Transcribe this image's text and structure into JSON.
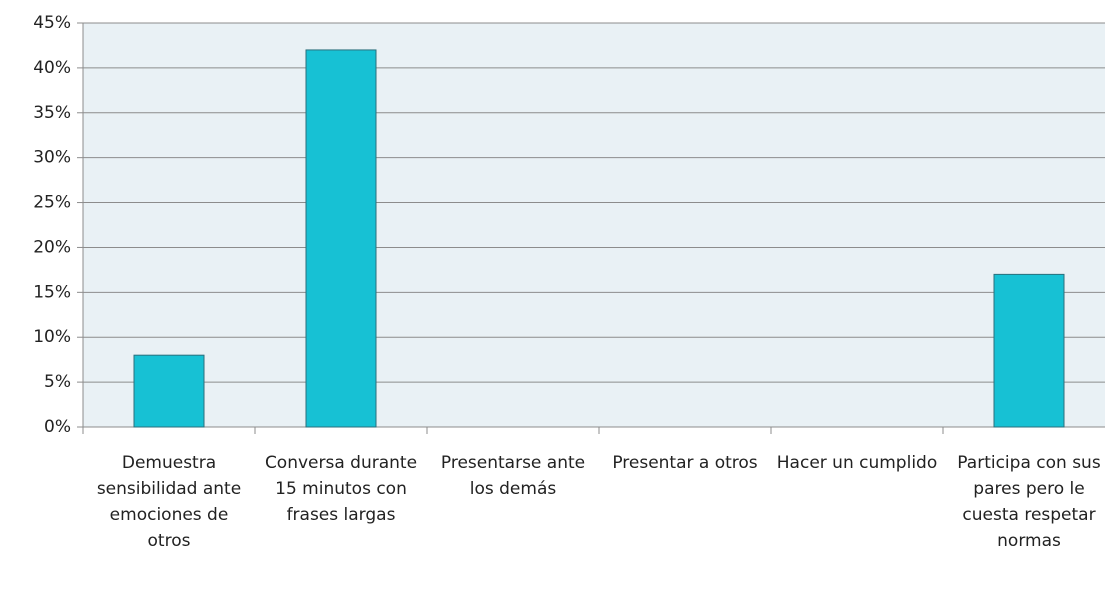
{
  "chart_data": {
    "type": "bar",
    "categories": [
      "Demuestra sensibilidad ante emociones  de otros",
      "Conversa durante 15 minutos con frases largas",
      "Presentarse ante los demás",
      "Presentar a otros",
      "Hacer un cumplido",
      "Participa con sus pares pero le cuesta respetar normas"
    ],
    "values": [
      8,
      42,
      0,
      0,
      0,
      17
    ],
    "color": "#17c1d4",
    "ylim": [
      0,
      45
    ],
    "yticks": [
      {
        "value": 0,
        "label": "0%"
      },
      {
        "value": 5,
        "label": "5%"
      },
      {
        "value": 10,
        "label": "10%"
      },
      {
        "value": 15,
        "label": "15%"
      },
      {
        "value": 20,
        "label": "20%"
      },
      {
        "value": 25,
        "label": "25%"
      },
      {
        "value": 30,
        "label": "30%"
      },
      {
        "value": 35,
        "label": "35%"
      },
      {
        "value": 40,
        "label": "40%"
      },
      {
        "value": 45,
        "label": "45%"
      }
    ],
    "grid": true
  }
}
